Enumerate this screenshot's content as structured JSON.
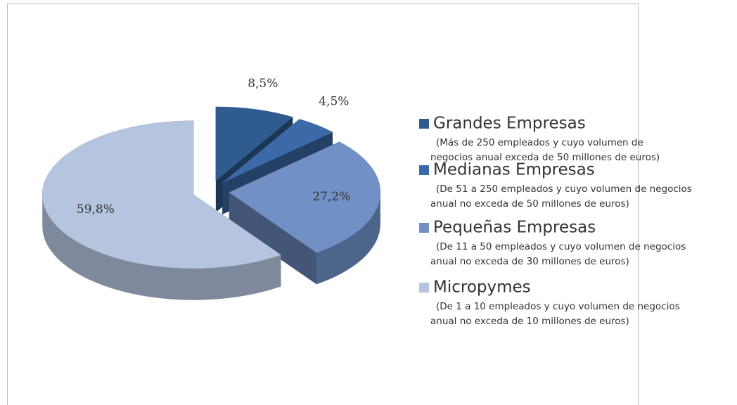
{
  "chart_data": {
    "type": "pie",
    "categories": [
      "Grandes Empresas",
      "Medianas Empresas",
      "Pequeñas Empresas",
      "Micropymes"
    ],
    "descriptions": [
      [
        "(Más de 250 empleados y cuyo volumen de",
        "negocios anual exceda de 50 millones de euros)"
      ],
      [
        "(De 51 a 250 empleados y cuyo volumen de negocios",
        "anual no exceda de 50 millones de euros)"
      ],
      [
        "(De 11 a 50 empleados y cuyo volumen de negocios",
        "anual no exceda de 30 millones de euros)"
      ],
      [
        "(De 1 a 10 empleados y cuyo volumen de negocios",
        "anual no exceda de 10 millones de euros)"
      ]
    ],
    "values": [
      8.5,
      4.5,
      27.2,
      59.8
    ],
    "value_labels": [
      "8,5%",
      "4,5%",
      "27,2%",
      "59,8%"
    ],
    "colors": [
      "#2f5b8f",
      "#3c6aa8",
      "#7090c6",
      "#b5c4df"
    ]
  }
}
